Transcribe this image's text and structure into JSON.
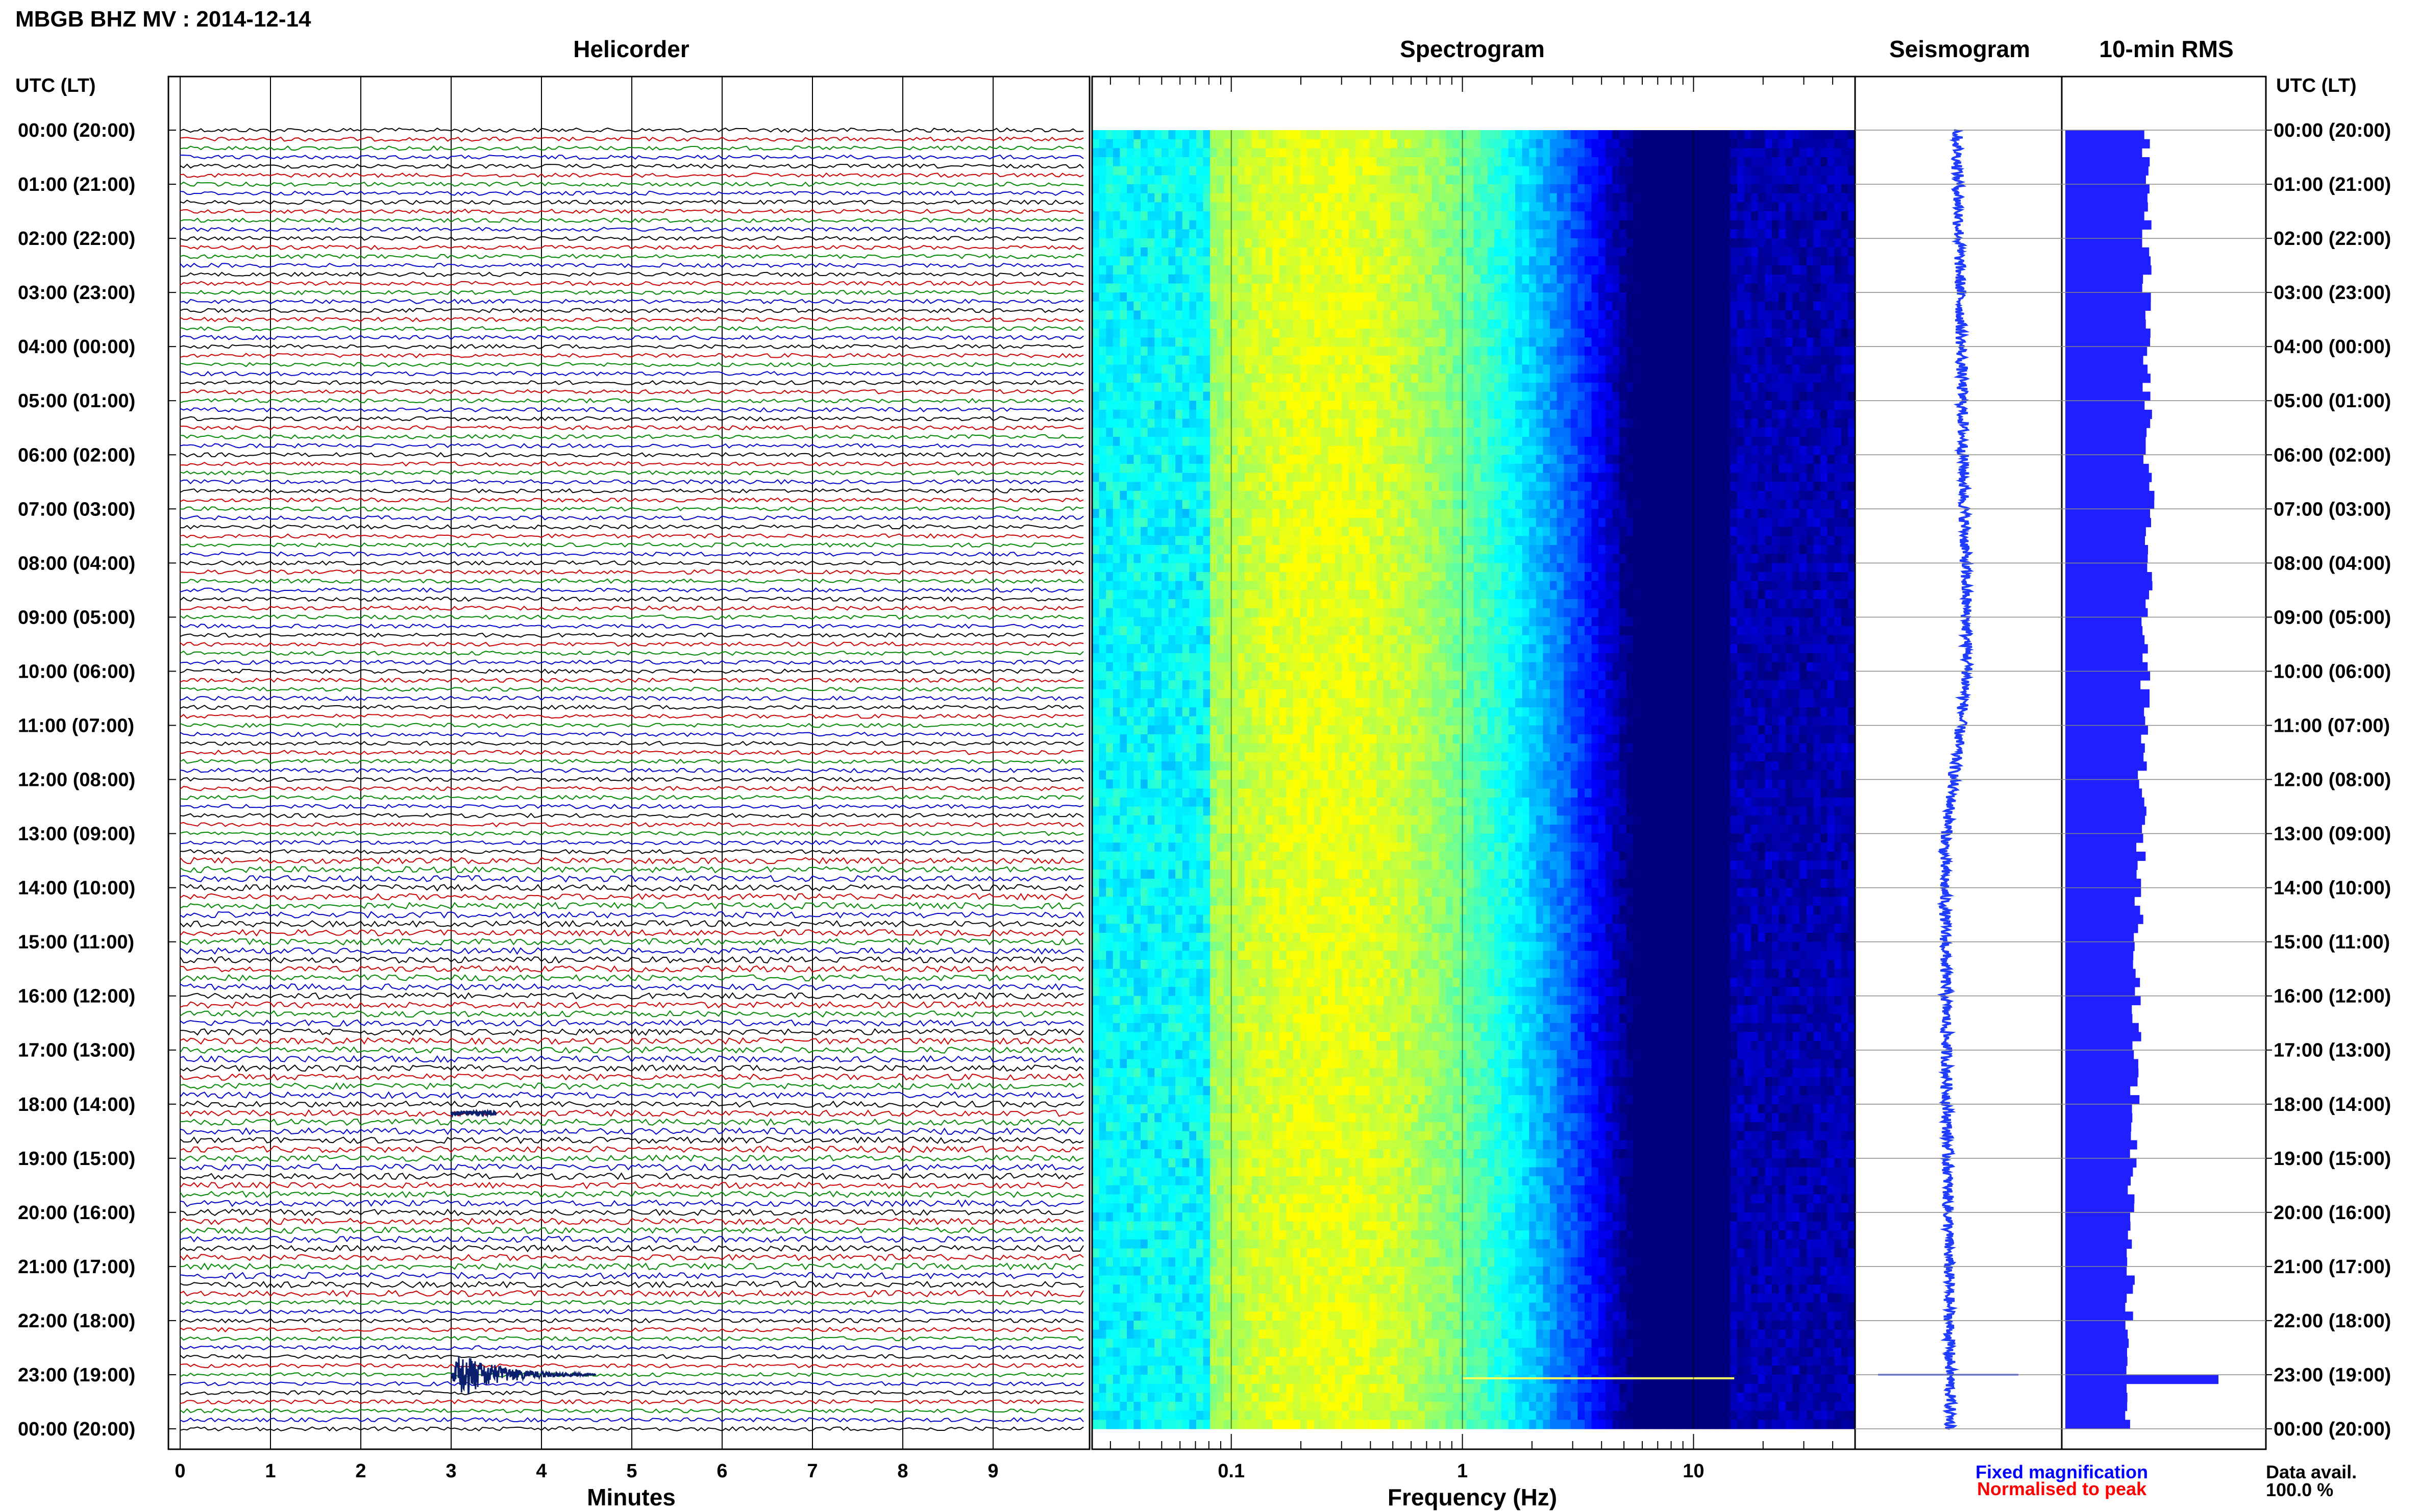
{
  "header": {
    "title": "MBGB BHZ MV : 2014-12-14"
  },
  "panels": {
    "helicorder": "Helicorder",
    "spectrogram": "Spectrogram",
    "seismogram": "Seismogram",
    "rms": "10-min RMS"
  },
  "axes": {
    "utc_label_left": "UTC (LT)",
    "utc_label_right": "UTC (LT)",
    "helicorder_xlabel": "Minutes",
    "spectrogram_xlabel": "Frequency (Hz)"
  },
  "time_labels": [
    "00:00 (20:00)",
    "01:00 (21:00)",
    "02:00 (22:00)",
    "03:00 (23:00)",
    "04:00 (00:00)",
    "05:00 (01:00)",
    "06:00 (02:00)",
    "07:00 (03:00)",
    "08:00 (04:00)",
    "09:00 (05:00)",
    "10:00 (06:00)",
    "11:00 (07:00)",
    "12:00 (08:00)",
    "13:00 (09:00)",
    "14:00 (10:00)",
    "15:00 (11:00)",
    "16:00 (12:00)",
    "17:00 (13:00)",
    "18:00 (14:00)",
    "19:00 (15:00)",
    "20:00 (16:00)",
    "21:00 (17:00)",
    "22:00 (18:00)",
    "23:00 (19:00)",
    "00:00 (20:00)"
  ],
  "legend": {
    "fixed": "Fixed magnification",
    "normalised": "Normalised to peak",
    "fixed_color": "#0000ff",
    "normalised_color": "#ff0000"
  },
  "data_avail": {
    "label": "Data avail.",
    "value": "100.0 %"
  },
  "colors": {
    "trace_cycle": [
      "#000000",
      "#cc0000",
      "#008800",
      "#0000cc"
    ],
    "seismogram": "#1f3cff",
    "rms": "#1f1fff"
  },
  "chart_data": [
    {
      "type": "line",
      "name": "helicorder",
      "title": "Helicorder",
      "xlabel": "Minutes",
      "x_ticks": [
        "0",
        "1",
        "2",
        "3",
        "4",
        "5",
        "6",
        "7",
        "8",
        "9"
      ],
      "xlim": [
        0,
        10
      ],
      "rows": 144,
      "row_minutes": 10,
      "events": [
        {
          "start_min": 3.0,
          "row": 138,
          "amplitude": "large"
        },
        {
          "start_min": 3.0,
          "row": 109,
          "amplitude": "small"
        }
      ]
    },
    {
      "type": "heatmap",
      "name": "spectrogram",
      "title": "Spectrogram",
      "xlabel": "Frequency (Hz)",
      "x_scale": "log",
      "xlim": [
        0.025,
        50
      ],
      "x_ticks": [
        "0.1",
        "1",
        "10"
      ],
      "colormap": [
        "#00007f",
        "#0000ff",
        "#0080ff",
        "#00ffff",
        "#80ff80",
        "#ffff00"
      ],
      "peak_frequency_hz": 0.25
    },
    {
      "type": "line",
      "name": "seismogram",
      "title": "Seismogram",
      "event_row": 138
    },
    {
      "type": "bar",
      "name": "rms",
      "title": "10-min RMS",
      "rows": 144,
      "peak_row": 138
    }
  ]
}
